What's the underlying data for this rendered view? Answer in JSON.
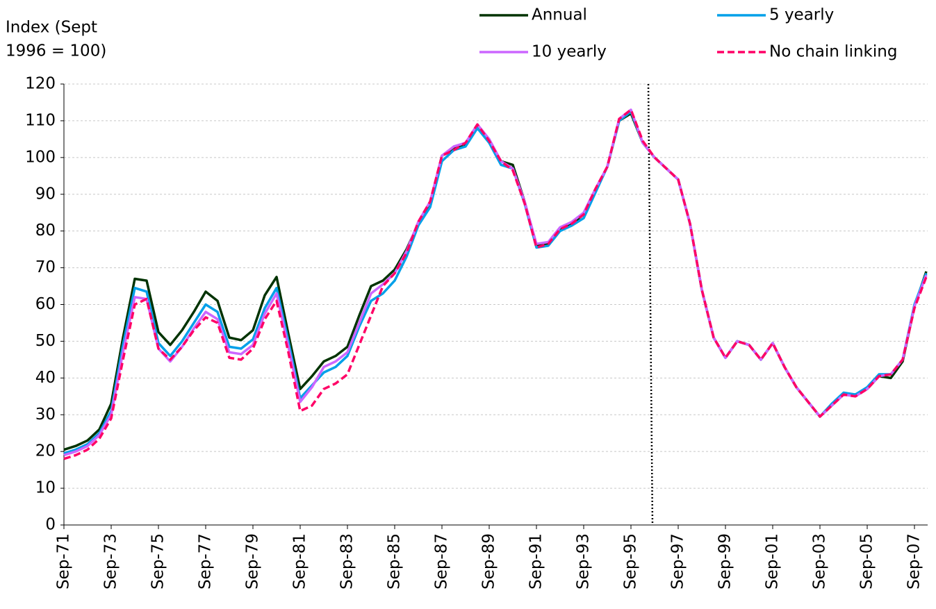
{
  "chart_data": {
    "type": "line",
    "y_label": [
      "Index (Sept",
      "1996 = 100)"
    ],
    "categories": [
      "Sep-71",
      null,
      null,
      null,
      "Sep-73",
      null,
      null,
      null,
      "Sep-75",
      null,
      null,
      null,
      "Sep-77",
      null,
      null,
      null,
      "Sep-79",
      null,
      null,
      null,
      "Sep-81",
      null,
      null,
      null,
      "Sep-83",
      null,
      null,
      null,
      "Sep-85",
      null,
      null,
      null,
      "Sep-87",
      null,
      null,
      null,
      "Sep-89",
      null,
      null,
      null,
      "Sep-91",
      null,
      null,
      null,
      "Sep-93",
      null,
      null,
      null,
      "Sep-95",
      null,
      null,
      null,
      "Sep-97",
      null,
      null,
      null,
      "Sep-99",
      null,
      null,
      null,
      "Sep-01",
      null,
      null,
      null,
      "Sep-03",
      null,
      null,
      null,
      "Sep-05",
      null,
      null,
      null,
      "Sep-07",
      null
    ],
    "series": [
      {
        "name": "Annual",
        "color": "#003300",
        "dashed": false,
        "values": [
          20.5,
          21.5,
          23,
          26,
          33,
          51,
          67,
          66.5,
          52.5,
          49,
          53,
          58,
          63.5,
          61,
          51,
          50.3,
          53,
          62.5,
          67.5,
          52,
          37,
          40.5,
          44.5,
          46,
          48.5,
          57,
          65,
          66.5,
          69.5,
          75,
          82,
          87.5,
          100.5,
          102.5,
          103.5,
          108.5,
          104.5,
          99,
          98,
          88,
          76,
          76.5,
          80.5,
          82,
          84.5,
          91,
          97.5,
          110,
          112,
          104,
          100,
          97,
          94,
          82,
          64,
          51,
          45.5,
          50,
          49,
          45,
          49.5,
          43,
          37.5,
          33.5,
          29.5,
          32.5,
          35.5,
          35.5,
          37,
          40.5,
          40,
          44.5,
          59.5,
          69
        ]
      },
      {
        "name": "5 yearly",
        "color": "#00a0e9",
        "dashed": false,
        "values": [
          19.5,
          20.5,
          22,
          25,
          31,
          49,
          64.5,
          63.5,
          49.5,
          46,
          50,
          55,
          60,
          58,
          48.5,
          48,
          50.5,
          59,
          64.5,
          50,
          34.5,
          38,
          41.5,
          43,
          46,
          54,
          61,
          63,
          66.5,
          73,
          81.5,
          86.5,
          99,
          102,
          103,
          108,
          104,
          98,
          97,
          87.5,
          75.5,
          76,
          80,
          81.5,
          83.5,
          90.5,
          97.5,
          110,
          112.5,
          104,
          100,
          97,
          94,
          82,
          64,
          51,
          45.5,
          50,
          49,
          45,
          49.5,
          43,
          37.5,
          33.5,
          29.5,
          33,
          36,
          35.5,
          37.5,
          41,
          41,
          45,
          60,
          68.5
        ]
      },
      {
        "name": "10 yearly",
        "color": "#cc66ff",
        "dashed": false,
        "values": [
          19,
          20,
          21.5,
          24.5,
          30,
          47,
          62,
          61.5,
          48,
          44.5,
          48.5,
          53.5,
          58,
          56,
          47,
          46.5,
          49,
          57.5,
          63,
          48.5,
          33.5,
          37.5,
          43,
          44.5,
          47,
          55,
          63,
          65.5,
          68.5,
          74.5,
          82.5,
          88,
          100.5,
          103,
          104,
          109,
          105,
          99,
          97,
          88,
          76.5,
          77,
          81,
          82.5,
          85,
          91.5,
          97.5,
          110.5,
          113,
          104,
          100,
          97,
          94,
          82,
          64,
          51,
          45.5,
          50,
          49,
          45,
          49.5,
          43,
          37.5,
          33.5,
          29.5,
          32.5,
          35.5,
          35,
          37,
          40.5,
          41,
          45,
          59.5,
          68
        ]
      },
      {
        "name": "No chain linking",
        "color": "#ff0066",
        "dashed": true,
        "values": [
          18,
          19,
          20.5,
          23.5,
          29,
          45,
          60,
          61.5,
          48,
          45,
          48.5,
          53,
          56.5,
          55,
          45.5,
          45,
          48,
          56,
          61,
          47,
          31,
          32.5,
          37,
          38.5,
          41,
          49,
          57,
          65,
          68.5,
          74,
          82.5,
          88,
          100.5,
          102,
          104,
          109,
          104.5,
          99,
          96.5,
          87.5,
          75.5,
          76.5,
          80.5,
          82,
          84.5,
          91.5,
          97.5,
          110.5,
          113,
          104.5,
          100,
          97,
          94,
          82,
          64,
          51,
          45.5,
          50,
          49,
          45,
          49.5,
          43,
          37.5,
          33.5,
          29.5,
          32.5,
          35.5,
          35,
          37,
          40.5,
          41,
          45,
          59,
          67.5
        ]
      }
    ],
    "ylim": [
      0,
      120
    ],
    "yticks": [
      0,
      10,
      20,
      30,
      40,
      50,
      60,
      70,
      80,
      90,
      100,
      110,
      120
    ],
    "grid": true,
    "reference_line_index": 50,
    "legend": "top"
  }
}
